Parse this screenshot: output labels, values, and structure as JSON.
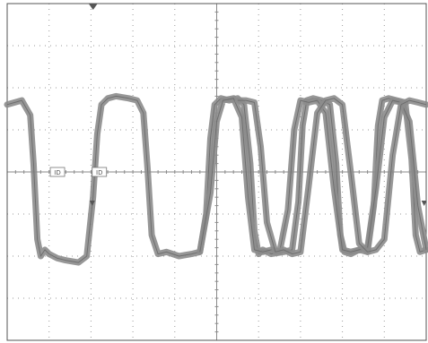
{
  "chart_data": {
    "type": "line",
    "title": "",
    "xlabel": "",
    "ylabel": "",
    "xlim": [
      0,
      10
    ],
    "ylim": [
      -4,
      4
    ],
    "grid": true,
    "x_divisions": 10,
    "y_divisions": 8,
    "colors": {
      "trace": "#8c8c8c",
      "grid": "#9a9a9a",
      "frame": "#555555",
      "trigger_marker": "#555555"
    },
    "cursor_labels": [
      "ID",
      "ID"
    ],
    "series": [
      {
        "x": [
          0.0,
          0.35,
          0.55,
          0.63,
          0.72,
          0.8,
          0.9,
          1.0,
          1.2,
          1.4,
          1.7,
          1.9,
          2.05,
          2.15,
          2.25,
          2.4,
          2.6,
          2.9,
          3.1,
          3.25,
          3.35,
          3.45,
          3.6,
          3.8,
          4.1,
          4.4,
          4.6,
          4.75,
          4.85,
          4.95,
          5.1,
          5.3,
          5.5,
          5.65,
          5.8,
          5.9,
          6.0,
          6.1,
          6.3,
          6.6,
          6.8,
          6.95,
          7.05,
          7.15,
          7.3,
          7.5,
          7.7,
          7.85,
          7.95,
          8.05,
          8.2,
          8.4,
          8.6,
          8.75,
          8.85,
          8.95,
          9.1,
          9.3,
          9.5,
          9.65,
          9.75,
          9.85,
          10.0
        ],
        "y": [
          1.6,
          1.7,
          1.35,
          0.2,
          -1.6,
          -2.0,
          -1.85,
          -1.95,
          -2.05,
          -2.1,
          -2.15,
          -2.0,
          -0.6,
          0.9,
          1.6,
          1.75,
          1.8,
          1.75,
          1.7,
          1.4,
          0.1,
          -1.5,
          -1.95,
          -1.9,
          -2.0,
          -1.95,
          -1.9,
          -1.0,
          0.8,
          1.6,
          1.75,
          1.7,
          1.75,
          1.6,
          0.2,
          -1.4,
          -1.95,
          -1.85,
          -1.95,
          -1.9,
          -1.85,
          -0.7,
          1.1,
          1.7,
          1.75,
          1.7,
          1.6,
          0.2,
          -1.5,
          -1.9,
          -1.95,
          -1.85,
          -1.9,
          -0.8,
          1.1,
          1.7,
          1.75,
          1.7,
          1.65,
          0.3,
          -1.5,
          -1.9,
          -1.85
        ]
      },
      {
        "x": [
          4.6,
          4.85,
          5.0,
          5.15,
          5.4,
          5.6,
          5.75,
          5.9,
          6.1,
          6.3,
          6.5,
          6.7,
          6.85,
          7.0,
          7.2,
          7.4,
          7.6,
          7.8,
          8.0,
          8.2,
          8.4,
          8.6,
          8.8,
          9.0,
          9.2,
          9.4,
          9.6,
          9.8,
          10.0
        ],
        "y": [
          -1.9,
          -0.5,
          1.2,
          1.7,
          1.75,
          1.3,
          -0.6,
          -1.85,
          -1.9,
          -1.85,
          -1.9,
          -0.9,
          1.0,
          1.7,
          1.65,
          1.7,
          1.4,
          -0.4,
          -1.85,
          -1.9,
          -1.85,
          -1.8,
          -0.4,
          1.3,
          1.7,
          1.65,
          1.2,
          -0.8,
          -1.85
        ]
      },
      {
        "x": [
          5.5,
          5.7,
          5.9,
          6.05,
          6.2,
          6.4,
          6.6,
          6.8,
          7.0,
          7.2,
          7.4,
          7.6,
          7.8,
          8.0,
          8.2,
          8.4,
          8.6,
          8.8,
          9.0,
          9.2,
          9.4,
          9.6,
          9.8,
          10.0
        ],
        "y": [
          1.7,
          1.7,
          1.65,
          0.6,
          -1.2,
          -1.9,
          -1.85,
          -1.95,
          -1.9,
          -0.3,
          1.4,
          1.7,
          1.75,
          1.6,
          0.0,
          -1.7,
          -1.9,
          -1.85,
          -1.6,
          0.4,
          1.6,
          1.7,
          1.65,
          1.6
        ]
      }
    ]
  }
}
